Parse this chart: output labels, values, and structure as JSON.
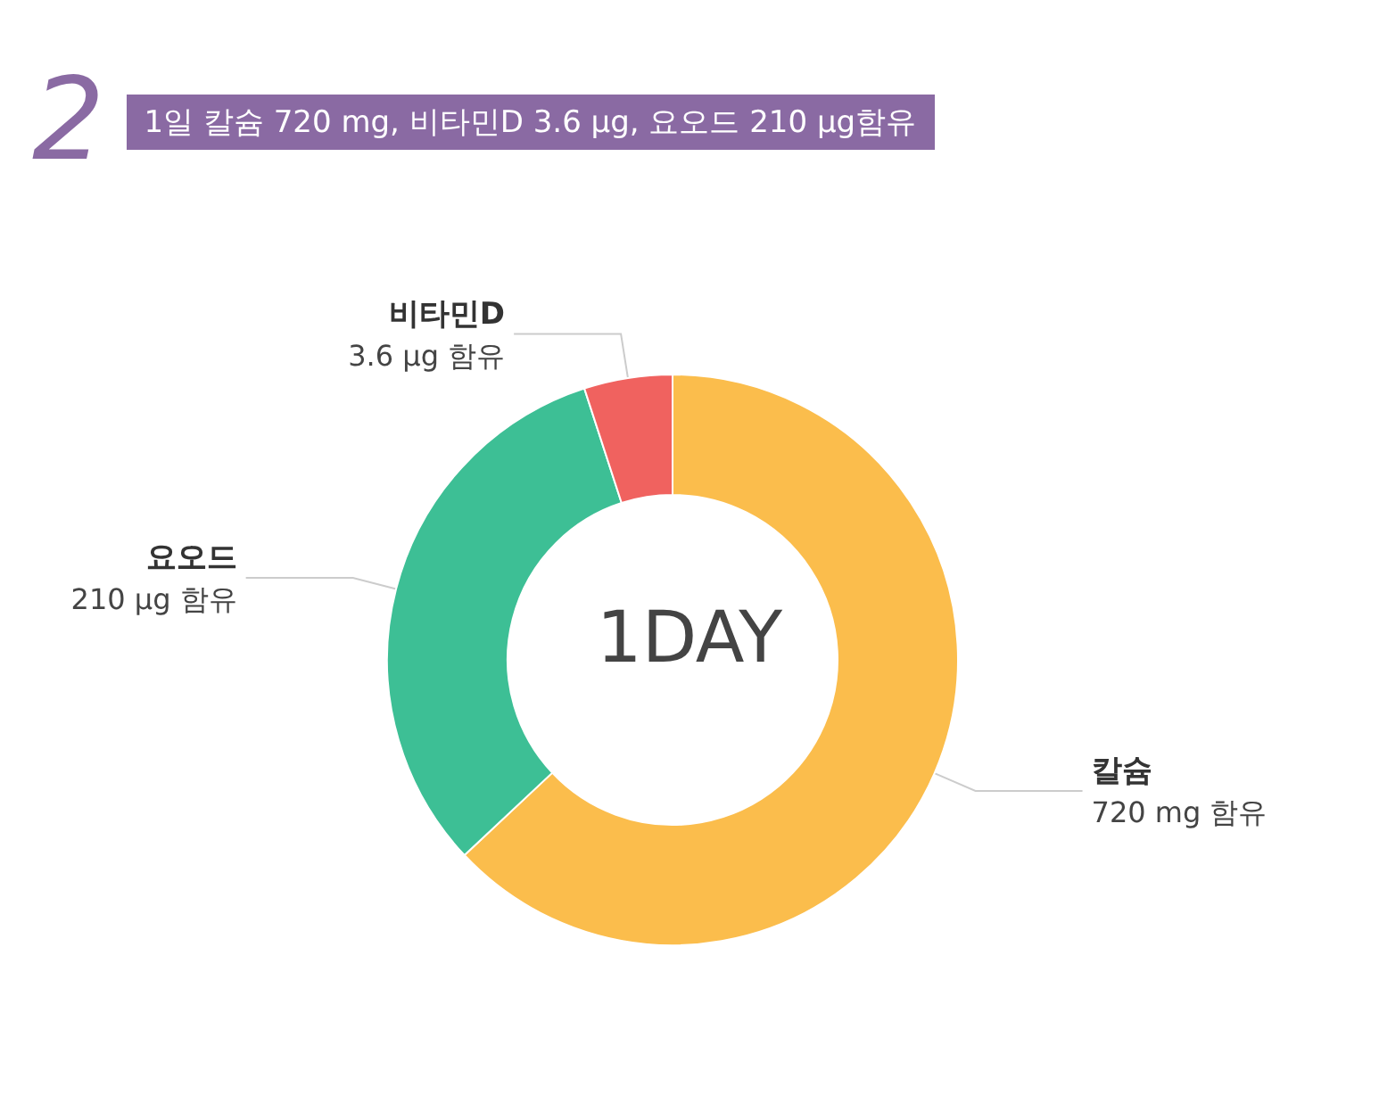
{
  "chart_data": {
    "type": "donut",
    "title": "1일 칼슘 720 mg, 비타민D 3.6 µg, 요오드 210 µg함유",
    "annotations": [
      "2",
      "1DAY",
      "720 mg 함유",
      "210 µg 함유",
      "3.6 µg 함유"
    ],
    "categories": [
      "칼슘",
      "요오드",
      "비타민D"
    ],
    "values": [
      63,
      32,
      5
    ],
    "colors": [
      "#fbbd4c",
      "#3dbf95",
      "#f0625f"
    ],
    "legend": false
  }
}
